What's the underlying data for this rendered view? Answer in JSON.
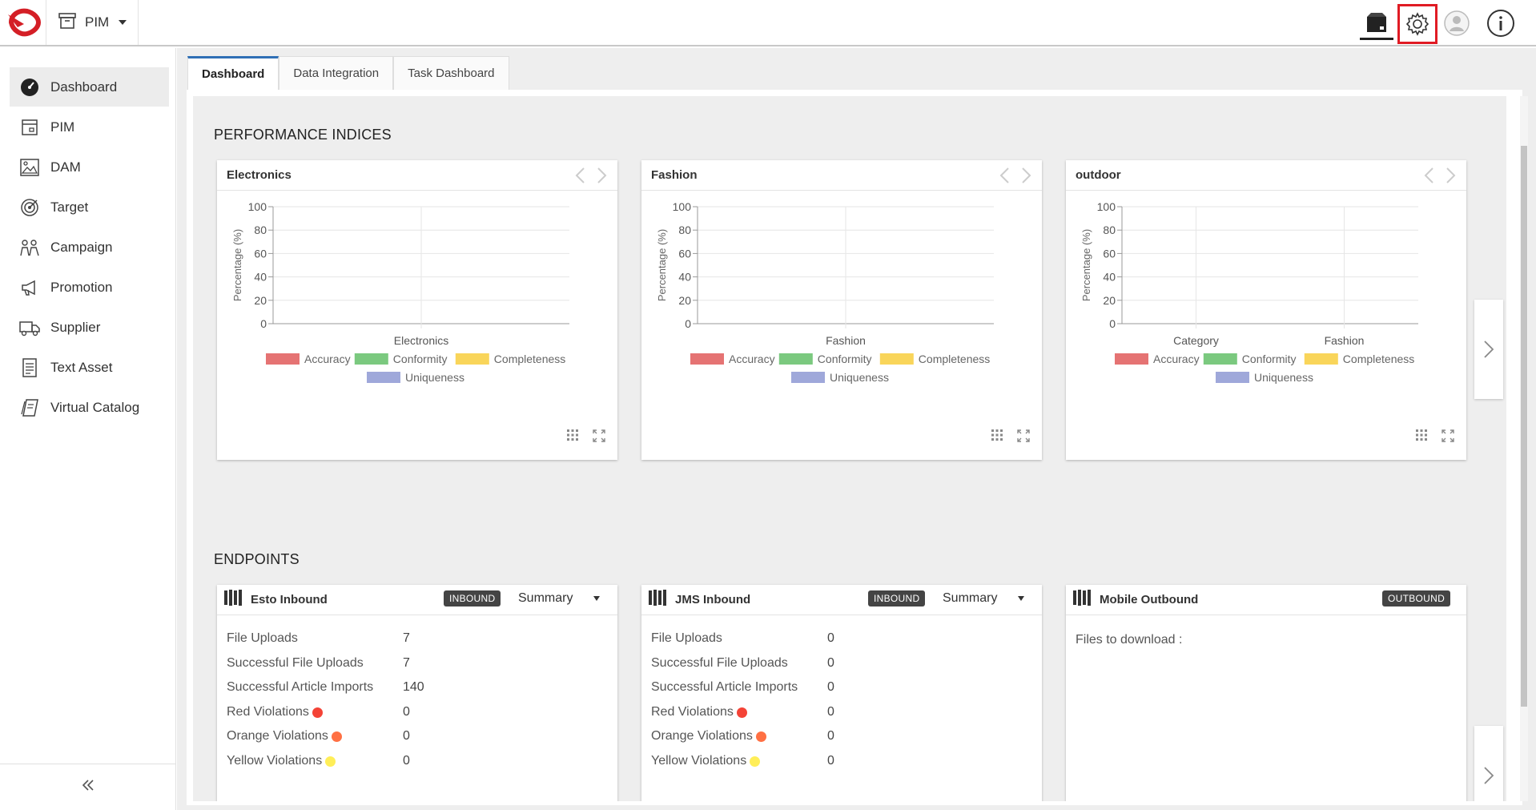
{
  "header": {
    "app_label": "PIM",
    "icons": [
      "app-logo",
      "archive-icon",
      "box-icon",
      "gear-icon",
      "user-icon",
      "info-icon"
    ]
  },
  "sidebar": {
    "items": [
      {
        "label": "Dashboard",
        "icon": "speedometer-icon",
        "active": true
      },
      {
        "label": "PIM",
        "icon": "pim-icon"
      },
      {
        "label": "DAM",
        "icon": "image-icon"
      },
      {
        "label": "Target",
        "icon": "target-icon"
      },
      {
        "label": "Campaign",
        "icon": "campaign-icon"
      },
      {
        "label": "Promotion",
        "icon": "megaphone-icon"
      },
      {
        "label": "Supplier",
        "icon": "truck-icon"
      },
      {
        "label": "Text Asset",
        "icon": "document-icon"
      },
      {
        "label": "Virtual Catalog",
        "icon": "catalog-icon"
      }
    ],
    "collapse_icon": "double-chevron-left-icon"
  },
  "tabs": [
    {
      "label": "Dashboard",
      "active": true
    },
    {
      "label": "Data Integration"
    },
    {
      "label": "Task Dashboard"
    }
  ],
  "performance": {
    "title": "PERFORMANCE INDICES",
    "legend": [
      {
        "label": "Accuracy",
        "color": "#e57373"
      },
      {
        "label": "Conformity",
        "color": "#7bc97f"
      },
      {
        "label": "Completeness",
        "color": "#f9d55a"
      },
      {
        "label": "Uniqueness",
        "color": "#9fa8da"
      }
    ],
    "ylabel": "Percentage (%)"
  },
  "chart_data": [
    {
      "type": "bar",
      "title": "Electronics",
      "categories": [
        "Electronics"
      ],
      "series": [
        {
          "name": "Accuracy",
          "values": [
            0
          ]
        },
        {
          "name": "Conformity",
          "values": [
            0
          ]
        },
        {
          "name": "Completeness",
          "values": [
            0
          ]
        },
        {
          "name": "Uniqueness",
          "values": [
            0
          ]
        }
      ],
      "ylabel": "Percentage (%)",
      "yticks": [
        "0",
        "20",
        "40",
        "60",
        "80",
        "100"
      ],
      "ylim": [
        0,
        100
      ],
      "grid": true,
      "legend": "bottom"
    },
    {
      "type": "bar",
      "title": "Fashion",
      "categories": [
        "Fashion"
      ],
      "series": [
        {
          "name": "Accuracy",
          "values": [
            0
          ]
        },
        {
          "name": "Conformity",
          "values": [
            0
          ]
        },
        {
          "name": "Completeness",
          "values": [
            0
          ]
        },
        {
          "name": "Uniqueness",
          "values": [
            0
          ]
        }
      ],
      "ylabel": "Percentage (%)",
      "yticks": [
        "0",
        "20",
        "40",
        "60",
        "80",
        "100"
      ],
      "ylim": [
        0,
        100
      ],
      "grid": true,
      "legend": "bottom"
    },
    {
      "type": "bar",
      "title": "outdoor",
      "categories": [
        "Category",
        "Fashion"
      ],
      "series": [
        {
          "name": "Accuracy",
          "values": [
            0,
            0
          ]
        },
        {
          "name": "Conformity",
          "values": [
            0,
            0
          ]
        },
        {
          "name": "Completeness",
          "values": [
            0,
            0
          ]
        },
        {
          "name": "Uniqueness",
          "values": [
            0,
            0
          ]
        }
      ],
      "ylabel": "Percentage (%)",
      "yticks": [
        "0",
        "20",
        "40",
        "60",
        "80",
        "100"
      ],
      "ylim": [
        0,
        100
      ],
      "grid": true,
      "legend": "bottom"
    }
  ],
  "endpoints": {
    "title": "ENDPOINTS",
    "cards": [
      {
        "title": "Esto Inbound",
        "badge": "INBOUND",
        "summary": "Summary",
        "stats": [
          {
            "label": "File Uploads",
            "value": "7"
          },
          {
            "label": "Successful File Uploads",
            "value": "7"
          },
          {
            "label": "Successful Article Imports",
            "value": "140"
          },
          {
            "label": "Red Violations",
            "value": "0",
            "dot": "#f44336"
          },
          {
            "label": "Orange Violations",
            "value": "0",
            "dot": "#ff7043"
          },
          {
            "label": "Yellow Violations",
            "value": "0",
            "dot": "#ffee58"
          }
        ]
      },
      {
        "title": "JMS Inbound",
        "badge": "INBOUND",
        "summary": "Summary",
        "stats": [
          {
            "label": "File Uploads",
            "value": "0"
          },
          {
            "label": "Successful File Uploads",
            "value": "0"
          },
          {
            "label": "Successful Article Imports",
            "value": "0"
          },
          {
            "label": "Red Violations",
            "value": "0",
            "dot": "#f44336"
          },
          {
            "label": "Orange Violations",
            "value": "0",
            "dot": "#ff7043"
          },
          {
            "label": "Yellow Violations",
            "value": "0",
            "dot": "#ffee58"
          }
        ]
      },
      {
        "title": "Mobile Outbound",
        "badge": "OUTBOUND",
        "files_text": "Files to download :"
      }
    ]
  }
}
